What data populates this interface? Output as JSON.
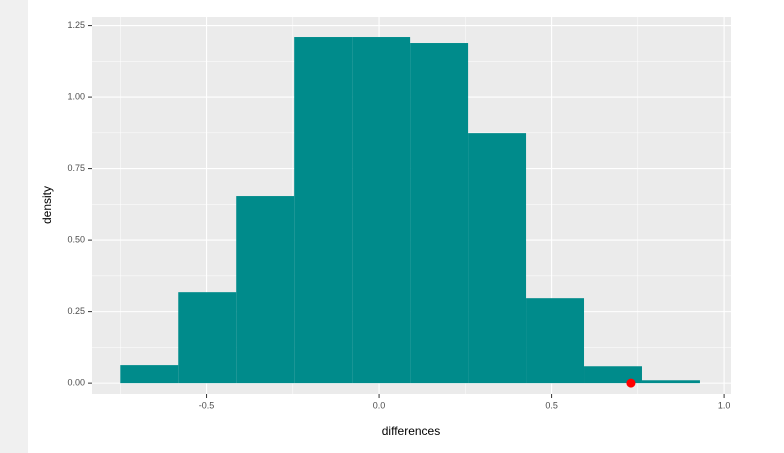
{
  "chart_data": {
    "type": "histogram",
    "x_label": "differences",
    "y_label": "density",
    "bins": [
      -0.75,
      -0.582,
      -0.414,
      -0.246,
      -0.078,
      0.09,
      0.258,
      0.426,
      0.594,
      0.762,
      0.93
    ],
    "values": [
      0.063,
      0.318,
      0.654,
      1.21,
      1.21,
      1.189,
      0.874,
      0.297,
      0.059,
      0.01
    ],
    "color": "#008b8b",
    "points": [
      {
        "x": 0.73,
        "y": 0,
        "color": "#ff0000"
      }
    ],
    "xlim": [
      -0.832,
      1.02
    ],
    "ylim": [
      -0.038,
      1.28
    ],
    "xticks": [
      -0.5,
      {
        "value": 0,
        "label": "0.0"
      },
      0.5,
      {
        "value": 1,
        "label": "1.0"
      }
    ],
    "yticks": [
      {
        "value": 0,
        "label": "0.00"
      },
      0.25,
      {
        "value": 0.5,
        "label": "0.50"
      },
      0.75,
      {
        "value": 1,
        "label": "1.00"
      },
      1.25
    ],
    "x_minor_ticks": [
      -0.75,
      -0.25,
      0.25,
      0.75
    ],
    "y_minor_ticks": [
      0.125,
      0.375,
      0.625,
      0.875,
      1.125
    ],
    "grid": true
  }
}
